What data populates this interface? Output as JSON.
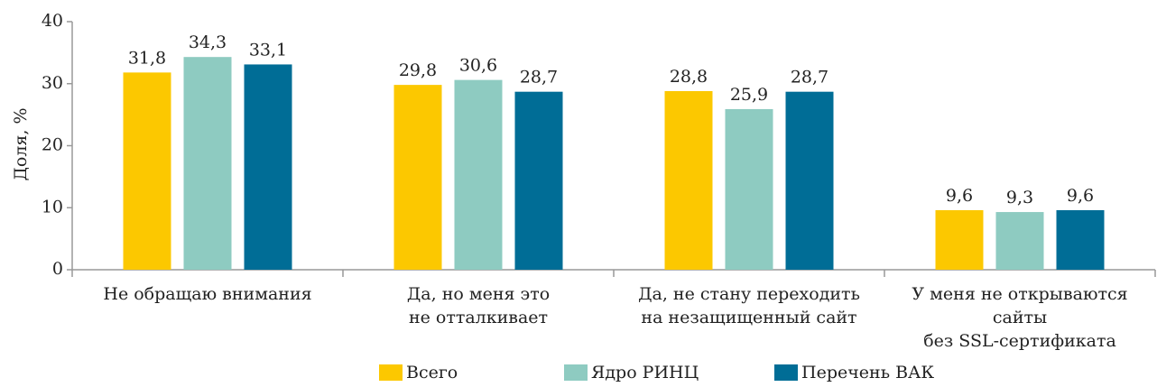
{
  "chart_data": {
    "type": "bar",
    "ylabel": "Доля, %",
    "categories": [
      [
        "Не обращаю внимания"
      ],
      [
        "Да, но меня это",
        "не отталкивает"
      ],
      [
        "Да, не стану переходить",
        "на незащищенный сайт"
      ],
      [
        "У меня не открываются",
        "сайты",
        "без SSL-сертификата"
      ]
    ],
    "series": [
      {
        "name": "Всего",
        "color": "#fcc800",
        "values": [
          31.8,
          29.8,
          28.8,
          9.6
        ],
        "value_labels": [
          "31,8",
          "29,8",
          "28,8",
          "9,6"
        ]
      },
      {
        "name": "Ядро РИНЦ",
        "color": "#8ecbc1",
        "values": [
          34.3,
          30.6,
          25.9,
          9.3
        ],
        "value_labels": [
          "34,3",
          "30,6",
          "25,9",
          "9,3"
        ]
      },
      {
        "name": "Перечень ВАК",
        "color": "#006d96",
        "values": [
          33.1,
          28.7,
          28.7,
          9.6
        ],
        "value_labels": [
          "33,1",
          "28,7",
          "28,7",
          "9,6"
        ]
      }
    ],
    "ylim": [
      0,
      40
    ],
    "yticks": [
      0,
      10,
      20,
      30,
      40
    ],
    "grid": false,
    "legend": "bottom"
  }
}
